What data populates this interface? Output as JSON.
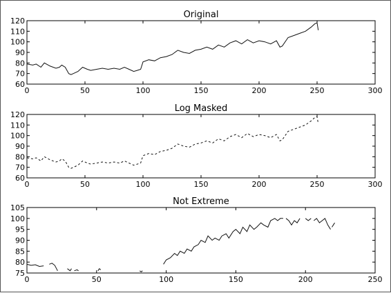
{
  "chart_data": [
    {
      "type": "line",
      "title": "Original",
      "xlabel": "",
      "ylabel": "",
      "xlim": [
        0,
        300
      ],
      "ylim": [
        60,
        120
      ],
      "xticks": [
        0,
        50,
        100,
        150,
        200,
        250,
        300
      ],
      "yticks": [
        60,
        70,
        80,
        90,
        100,
        110,
        120
      ],
      "grid": false,
      "series": [
        {
          "style": "solid",
          "x": [
            0,
            5,
            8,
            12,
            15,
            20,
            25,
            28,
            30,
            33,
            36,
            38,
            40,
            44,
            48,
            52,
            55,
            60,
            65,
            70,
            75,
            80,
            84,
            88,
            92,
            95,
            98,
            100,
            105,
            110,
            115,
            120,
            125,
            130,
            135,
            140,
            145,
            150,
            155,
            160,
            165,
            170,
            175,
            180,
            185,
            190,
            195,
            200,
            205,
            210,
            215,
            218,
            220,
            225,
            230,
            235,
            240,
            245,
            248,
            250,
            251
          ],
          "y": [
            79,
            78,
            79,
            76,
            80,
            77,
            75,
            76,
            78,
            76,
            70,
            69,
            70,
            72,
            76,
            74,
            73,
            74,
            75,
            74,
            75,
            74,
            76,
            74,
            72,
            73,
            74,
            81,
            83,
            82,
            85,
            86,
            88,
            92,
            90,
            89,
            92,
            93,
            95,
            93,
            97,
            95,
            99,
            101,
            98,
            102,
            99,
            101,
            100,
            98,
            101,
            95,
            96,
            104,
            106,
            108,
            110,
            114,
            117,
            118,
            111
          ]
        }
      ]
    },
    {
      "type": "line",
      "title": "Log Masked",
      "xlabel": "",
      "ylabel": "",
      "xlim": [
        0,
        300
      ],
      "ylim": [
        60,
        120
      ],
      "xticks": [
        0,
        50,
        100,
        150,
        200,
        250,
        300
      ],
      "yticks": [
        60,
        70,
        80,
        90,
        100,
        110,
        120
      ],
      "grid": false,
      "series": [
        {
          "style": "dashed",
          "x": [
            0,
            5,
            8,
            12,
            15,
            20,
            25,
            28,
            30,
            33,
            36,
            38,
            40,
            44,
            48,
            52,
            55,
            60,
            65,
            70,
            75,
            80,
            84,
            88,
            92,
            95,
            98,
            100,
            105,
            110,
            115,
            120,
            125,
            130,
            135,
            140,
            145,
            150,
            155,
            160,
            165,
            170,
            175,
            180,
            185,
            190,
            195,
            200,
            205,
            210,
            215,
            218,
            220,
            225,
            230,
            235,
            240,
            245,
            248,
            250,
            251
          ],
          "y": [
            79,
            78,
            79,
            76,
            80,
            77,
            75,
            76,
            78,
            76,
            70,
            69,
            70,
            72,
            76,
            74,
            73,
            74,
            75,
            74,
            75,
            74,
            76,
            74,
            72,
            73,
            74,
            81,
            83,
            82,
            85,
            86,
            88,
            92,
            90,
            89,
            92,
            93,
            95,
            93,
            97,
            95,
            99,
            101,
            98,
            102,
            99,
            101,
            100,
            98,
            101,
            95,
            96,
            104,
            106,
            108,
            110,
            114,
            117,
            118,
            111
          ]
        }
      ]
    },
    {
      "type": "line",
      "title": "Not Extreme",
      "xlabel": "",
      "ylabel": "",
      "xlim": [
        0,
        250
      ],
      "ylim": [
        75,
        105
      ],
      "xticks": [
        0,
        50,
        100,
        150,
        200,
        250
      ],
      "yticks": [
        75,
        80,
        85,
        90,
        95,
        100,
        105
      ],
      "grid": false,
      "series": [
        {
          "style": "solid",
          "segments": [
            {
              "x": [
                0,
                3,
                6,
                9,
                12
              ],
              "y": [
                79,
                78.5,
                78.8,
                78,
                78.3
              ]
            },
            {
              "x": [
                16,
                18,
                20,
                22
              ],
              "y": [
                79,
                79.5,
                78.5,
                76
              ]
            },
            {
              "x": [
                29,
                31,
                32
              ],
              "y": [
                77,
                76,
                77
              ]
            },
            {
              "x": [
                34,
                36,
                37
              ],
              "y": [
                76,
                76.5,
                76
              ]
            },
            {
              "x": [
                51,
                52,
                53
              ],
              "y": [
                76,
                77,
                76.5
              ]
            },
            {
              "x": [
                81,
                82,
                83
              ],
              "y": [
                76,
                75.5,
                76
              ]
            },
            {
              "x": [
                98,
                100,
                103,
                106,
                108,
                110,
                113,
                115,
                118,
                120,
                123,
                125,
                128,
                130,
                133,
                135,
                138,
                140,
                143,
                145,
                148,
                150,
                153,
                155,
                158,
                160,
                163,
                165,
                168,
                170,
                173,
                175,
                178,
                180,
                182,
                184
              ],
              "y": [
                79,
                81,
                82,
                84,
                83,
                85,
                84,
                86,
                85,
                87,
                88,
                90,
                89,
                92,
                90,
                91,
                90,
                92,
                93,
                91,
                94,
                95,
                93,
                96,
                94,
                97,
                95,
                96,
                98,
                97,
                96,
                99,
                100,
                99,
                100,
                100
              ]
            },
            {
              "x": [
                186,
                188,
                190,
                192,
                194,
                196
              ],
              "y": [
                100,
                99,
                97,
                99,
                98,
                100
              ]
            },
            {
              "x": [
                200,
                202,
                204
              ],
              "y": [
                100,
                99,
                100
              ]
            },
            {
              "x": [
                206,
                208,
                210,
                212,
                214,
                216,
                218
              ],
              "y": [
                99,
                100,
                98,
                99,
                100,
                97,
                95
              ]
            },
            {
              "x": [
                219,
                220,
                221
              ],
              "y": [
                96,
                97,
                98
              ]
            }
          ]
        }
      ]
    }
  ]
}
